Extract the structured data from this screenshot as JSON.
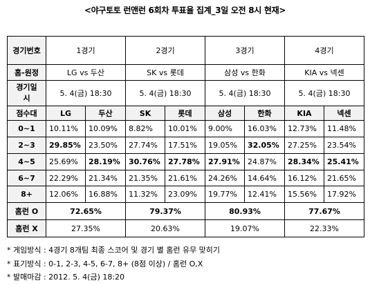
{
  "title": "<야구토토 런앤런 6회차 투표율 집계_3일 오전 8시 현재>",
  "labels": {
    "game_no": "경기번호",
    "home_away": "홈-원정",
    "date": "경기일시",
    "score_range": "점수대",
    "homerun_o": "홈런 O",
    "homerun_x": "홈런 X"
  },
  "games": [
    {
      "no": "1경기",
      "match": "LG vs 두산",
      "date": "5. 4(금) 18:30",
      "home": "LG",
      "away": "두산",
      "homerun_o": "72.65%",
      "homerun_x": "27.35%"
    },
    {
      "no": "2경기",
      "match": "SK vs 롯데",
      "date": "5. 4(금) 18:30",
      "home": "SK",
      "away": "롯데",
      "homerun_o": "79.37%",
      "homerun_x": "20.63%"
    },
    {
      "no": "3경기",
      "match": "삼성 vs 한화",
      "date": "5. 4(금) 18:30",
      "home": "삼성",
      "away": "한화",
      "homerun_o": "80.93%",
      "homerun_x": "19.07%"
    },
    {
      "no": "4경기",
      "match": "KIA vs 넥센",
      "date": "5. 4(금) 18:30",
      "home": "KIA",
      "away": "넥센",
      "homerun_o": "77.67%",
      "homerun_x": "22.33%"
    }
  ],
  "rows": [
    {
      "range": "0~1",
      "values": [
        "10.11%",
        "10.09%",
        "8.82%",
        "10.01%",
        "9.00%",
        "16.03%",
        "12.73%",
        "11.48%"
      ],
      "bold": [
        false,
        false,
        false,
        false,
        false,
        false,
        false,
        false
      ]
    },
    {
      "range": "2~3",
      "values": [
        "29.85%",
        "23.50%",
        "27.74%",
        "17.51%",
        "19.05%",
        "32.05%",
        "27.25%",
        "23.54%"
      ],
      "bold": [
        true,
        false,
        false,
        false,
        false,
        true,
        false,
        false
      ]
    },
    {
      "range": "4~5",
      "values": [
        "25.69%",
        "28.19%",
        "30.76%",
        "27.78%",
        "27.91%",
        "24.87%",
        "28.34%",
        "25.41%"
      ],
      "bold": [
        false,
        true,
        true,
        true,
        true,
        false,
        true,
        true
      ]
    },
    {
      "range": "6~7",
      "values": [
        "22.29%",
        "21.34%",
        "21.35%",
        "21.61%",
        "24.26%",
        "14.64%",
        "16.12%",
        "21.65%"
      ],
      "bold": [
        false,
        false,
        false,
        false,
        false,
        false,
        false,
        false
      ]
    },
    {
      "range": "8+",
      "values": [
        "12.06%",
        "16.88%",
        "11.32%",
        "23.09%",
        "19.77%",
        "12.41%",
        "15.56%",
        "17.92%"
      ],
      "bold": [
        false,
        false,
        false,
        false,
        false,
        false,
        false,
        false
      ]
    }
  ],
  "notes": [
    "* 게임방식 : 4경기 8개팀 최종 스코어 및 경기 별 홈런 유무 맞히기",
    "* 표기방식 : 0-1, 2-3, 4-5, 6-7, 8+ (8점 이상) /  홈런 O,X",
    "* 발매마감 : 2012. 5. 4(금) 18:20"
  ]
}
